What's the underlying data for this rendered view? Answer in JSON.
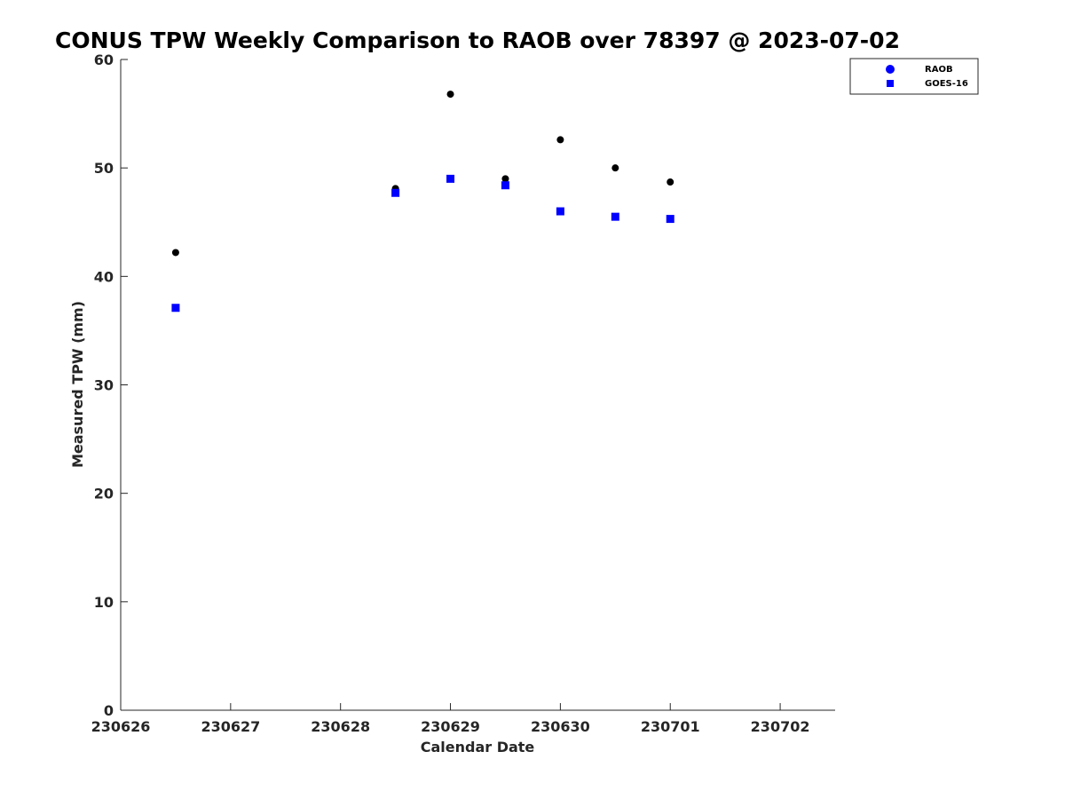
{
  "chart_data": {
    "type": "scatter",
    "title": "CONUS TPW Weekly Comparison to RAOB over 78397 @ 2023-07-02",
    "xlabel": "Calendar Date",
    "ylabel": "Measured TPW (mm)",
    "xlim": [
      "2023-06-26",
      "2023-07-02 12:00"
    ],
    "ylim": [
      0,
      60
    ],
    "x_ticks": [
      "230626",
      "230627",
      "230628",
      "230629",
      "230630",
      "230701",
      "230702"
    ],
    "y_ticks": [
      "0",
      "10",
      "20",
      "30",
      "40",
      "50",
      "60"
    ],
    "grid": false,
    "legend_position": "top-right",
    "series": [
      {
        "name": "RAOB",
        "marker": "circle",
        "color": "#000000",
        "legend_color": "#0000ff",
        "points": [
          {
            "x": "2023-06-26 12:00",
            "y": 42.2
          },
          {
            "x": "2023-06-28 12:00",
            "y": 48.1
          },
          {
            "x": "2023-06-29 00:00",
            "y": 56.8
          },
          {
            "x": "2023-06-29 12:00",
            "y": 49.0
          },
          {
            "x": "2023-06-30 00:00",
            "y": 52.6
          },
          {
            "x": "2023-06-30 12:00",
            "y": 50.0
          },
          {
            "x": "2023-07-01 00:00",
            "y": 48.7
          }
        ]
      },
      {
        "name": "GOES-16",
        "marker": "square",
        "color": "#0000ff",
        "points": [
          {
            "x": "2023-06-26 12:00",
            "y": 37.1
          },
          {
            "x": "2023-06-28 12:00",
            "y": 47.7
          },
          {
            "x": "2023-06-29 00:00",
            "y": 49.0
          },
          {
            "x": "2023-06-29 12:00",
            "y": 48.4
          },
          {
            "x": "2023-06-30 00:00",
            "y": 46.0
          },
          {
            "x": "2023-06-30 12:00",
            "y": 45.5
          },
          {
            "x": "2023-07-01 00:00",
            "y": 45.3
          }
        ]
      }
    ]
  }
}
